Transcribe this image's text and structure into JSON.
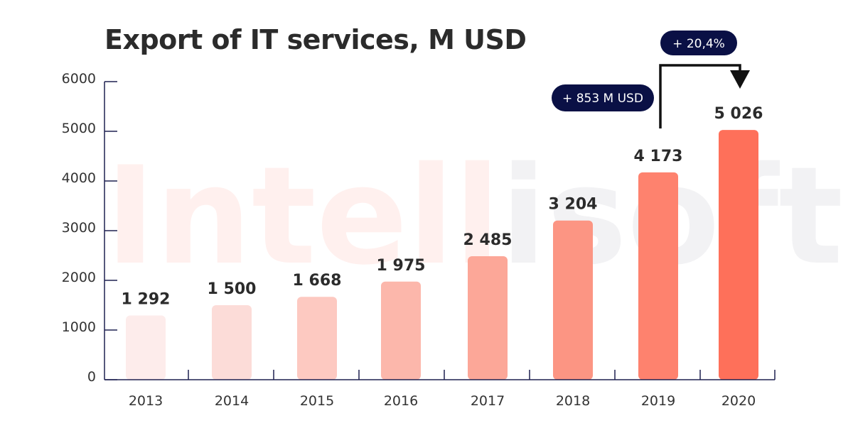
{
  "chart_data": {
    "type": "bar",
    "title": "Export of IT services, M USD",
    "categories": [
      "2013",
      "2014",
      "2015",
      "2016",
      "2017",
      "2018",
      "2019",
      "2020"
    ],
    "values": [
      1292,
      1500,
      1668,
      1975,
      2485,
      3204,
      4173,
      5026
    ],
    "value_labels": [
      "1 292",
      "1 500",
      "1 668",
      "1 975",
      "2 485",
      "3 204",
      "4 173",
      "5 026"
    ],
    "yticks": [
      0,
      1000,
      2000,
      3000,
      4000,
      5000,
      6000
    ],
    "ylim": [
      0,
      6000
    ],
    "xlabel": "",
    "ylabel": "",
    "grid": false,
    "bar_colors": [
      "#fdeceb",
      "#fcdcd8",
      "#fdc9c1",
      "#fcb7ab",
      "#fca798",
      "#fc9583",
      "#fe826e",
      "#fe705a"
    ],
    "annotations": {
      "growth_percent": "+ 20,4%",
      "growth_absolute": "+ 853 M USD"
    },
    "accent_color": "#0a1045",
    "axis_color": "#1e2150"
  },
  "watermark": "Intellisoft"
}
